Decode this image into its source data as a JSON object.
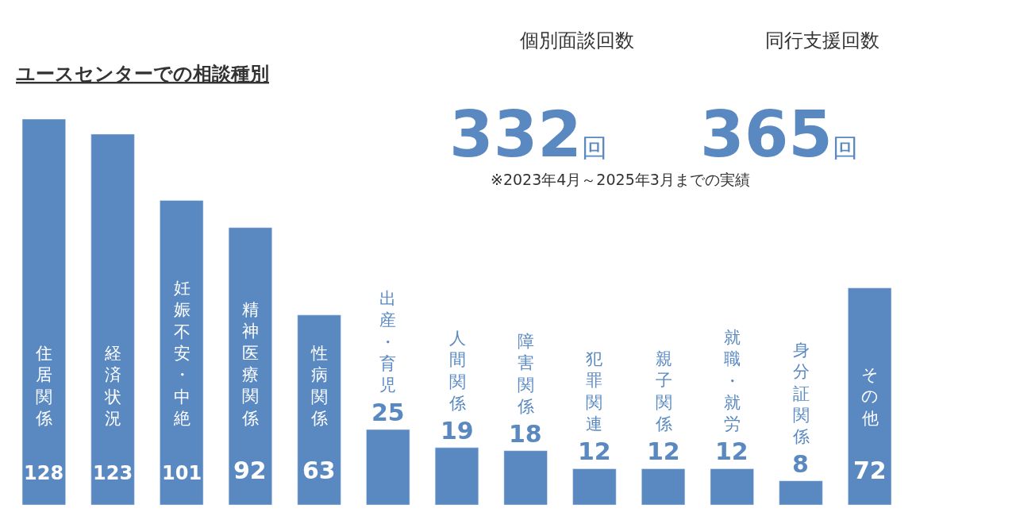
{
  "chart_data": {
    "type": "bar",
    "title": "ユースセンターでの相談種別",
    "categories": [
      "住居関係",
      "経済状況",
      "妊娠不安・中絶",
      "精神医療関係",
      "性病関係",
      "出産・育児",
      "人間関係",
      "障害関係",
      "犯罪関連",
      "親子関係",
      "就職・就労",
      "身分証関係",
      "その他"
    ],
    "values": [
      128,
      123,
      101,
      92,
      63,
      25,
      19,
      18,
      12,
      12,
      12,
      8,
      72
    ],
    "color": "#5a89c2",
    "data_labels": true,
    "annotations": [
      "個別面談回数",
      "332回",
      "同行支援回数",
      "365回",
      "※2023年4月～2025年3月までの実績"
    ]
  }
}
